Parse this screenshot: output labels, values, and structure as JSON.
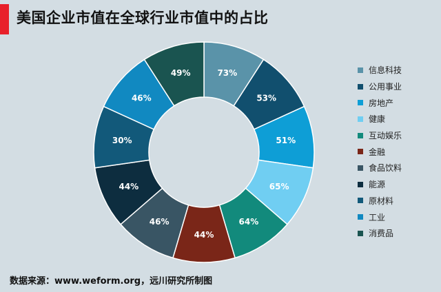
{
  "header": {
    "title": "美国企业市值在全球行业市值中的占比"
  },
  "source": "数据来源：www.weform.org，远川研究所制图",
  "chart_data": {
    "type": "pie",
    "donut": true,
    "title": "美国企业市值在全球行业市值中的占比",
    "unit": "%",
    "legend_position": "right",
    "categories": [
      "信息科技",
      "公用事业",
      "房地产",
      "健康",
      "互动娱乐",
      "金融",
      "食品饮料",
      "能源",
      "原材料",
      "工业",
      "消费品"
    ],
    "values": [
      73,
      53,
      51,
      65,
      64,
      44,
      46,
      44,
      30,
      46,
      49
    ],
    "labels": [
      "73%",
      "53%",
      "51%",
      "65%",
      "64%",
      "44%",
      "46%",
      "44%",
      "30%",
      "46%",
      "49%"
    ],
    "colors": [
      "#5a93a9",
      "#114f6e",
      "#0e9ed6",
      "#70cef2",
      "#128a7c",
      "#7a2618",
      "#395564",
      "#0d2d3f",
      "#12597a",
      "#1189c1",
      "#1a5450"
    ]
  }
}
